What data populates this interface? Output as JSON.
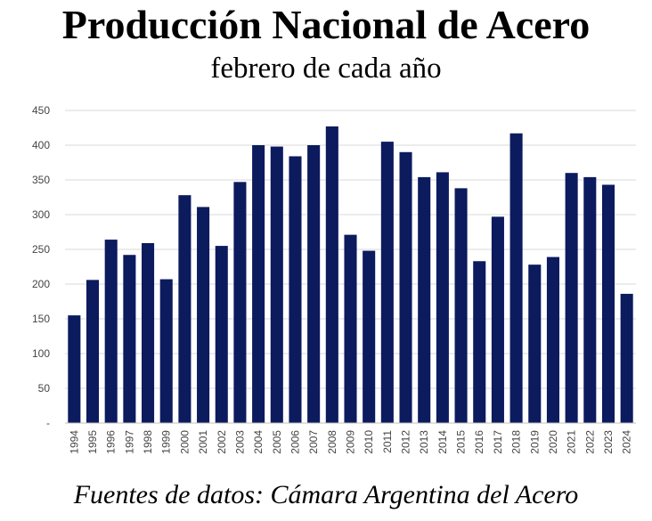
{
  "chart_data": {
    "type": "bar",
    "title": "Producción Nacional de Acero",
    "subtitle": "febrero de cada año",
    "source": "Fuentes de datos: Cámara Argentina del Acero",
    "categories": [
      "1994",
      "1995",
      "1996",
      "1997",
      "1998",
      "1999",
      "2000",
      "2001",
      "2002",
      "2003",
      "2004",
      "2005",
      "2006",
      "2007",
      "2008",
      "2009",
      "2010",
      "2011",
      "2012",
      "2013",
      "2014",
      "2015",
      "2016",
      "2017",
      "2018",
      "2019",
      "2020",
      "2021",
      "2022",
      "2023",
      "2024"
    ],
    "values": [
      155,
      206,
      264,
      242,
      259,
      207,
      328,
      311,
      255,
      347,
      400,
      398,
      384,
      400,
      427,
      271,
      248,
      405,
      390,
      354,
      361,
      338,
      233,
      297,
      417,
      228,
      239,
      360,
      354,
      343,
      186
    ],
    "yticks": [
      "-",
      "50",
      "100",
      "150",
      "200",
      "250",
      "300",
      "350",
      "400",
      "450"
    ],
    "ylim": [
      0,
      450
    ],
    "grid": true,
    "bar_color": "#0c1a5e",
    "grid_color": "#d9d9d9",
    "xlabel": "",
    "ylabel": ""
  }
}
